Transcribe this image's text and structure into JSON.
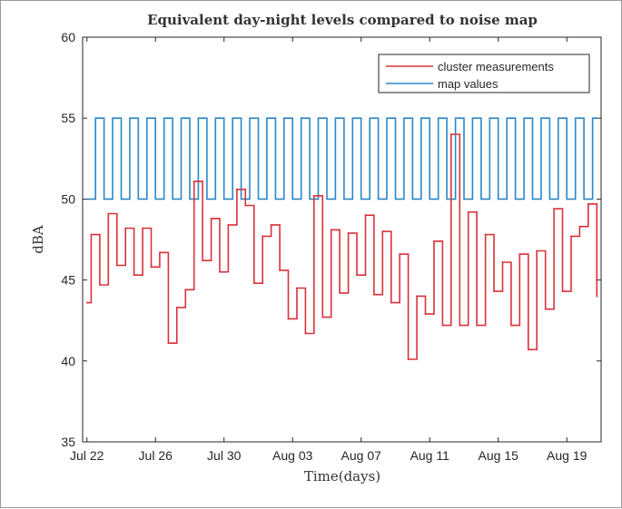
{
  "chart_data": {
    "type": "line",
    "style": "step",
    "title": "Equivalent day-night levels compared to noise map",
    "xlabel": "Time(days)",
    "ylabel": "dBA",
    "ylim": [
      35,
      60
    ],
    "yticks": [
      35,
      40,
      45,
      50,
      55,
      60
    ],
    "xlim": [
      "2023-07-21T18:00",
      "2023-08-21T00:00"
    ],
    "xticks": [
      {
        "date": "2023-07-22",
        "label": "Jul 22"
      },
      {
        "date": "2023-07-26",
        "label": "Jul 26"
      },
      {
        "date": "2023-07-30",
        "label": "Jul 30"
      },
      {
        "date": "2023-08-03",
        "label": "Aug 03"
      },
      {
        "date": "2023-08-07",
        "label": "Aug 07"
      },
      {
        "date": "2023-08-11",
        "label": "Aug 11"
      },
      {
        "date": "2023-08-15",
        "label": "Aug 15"
      },
      {
        "date": "2023-08-19",
        "label": "Aug 19"
      }
    ],
    "grid": false,
    "legend_position": "top-right",
    "series": [
      {
        "name": "cluster measurements",
        "color": "#d9323a",
        "points": [
          [
            "2023-07-22T00:00",
            43.6
          ],
          [
            "2023-07-22T06:00",
            47.8
          ],
          [
            "2023-07-22T18:00",
            44.7
          ],
          [
            "2023-07-23T06:00",
            49.1
          ],
          [
            "2023-07-23T18:00",
            45.9
          ],
          [
            "2023-07-24T06:00",
            48.2
          ],
          [
            "2023-07-24T18:00",
            45.3
          ],
          [
            "2023-07-25T06:00",
            48.2
          ],
          [
            "2023-07-25T18:00",
            45.8
          ],
          [
            "2023-07-26T06:00",
            46.7
          ],
          [
            "2023-07-26T18:00",
            41.1
          ],
          [
            "2023-07-27T06:00",
            43.3
          ],
          [
            "2023-07-27T18:00",
            44.4
          ],
          [
            "2023-07-28T06:00",
            51.1
          ],
          [
            "2023-07-28T18:00",
            46.2
          ],
          [
            "2023-07-29T06:00",
            48.8
          ],
          [
            "2023-07-29T18:00",
            45.5
          ],
          [
            "2023-07-30T06:00",
            48.4
          ],
          [
            "2023-07-30T18:00",
            50.6
          ],
          [
            "2023-07-31T06:00",
            49.6
          ],
          [
            "2023-07-31T18:00",
            44.8
          ],
          [
            "2023-08-01T06:00",
            47.7
          ],
          [
            "2023-08-01T18:00",
            48.4
          ],
          [
            "2023-08-02T06:00",
            45.6
          ],
          [
            "2023-08-02T18:00",
            42.6
          ],
          [
            "2023-08-03T06:00",
            44.5
          ],
          [
            "2023-08-03T18:00",
            41.7
          ],
          [
            "2023-08-04T06:00",
            50.2
          ],
          [
            "2023-08-04T18:00",
            42.7
          ],
          [
            "2023-08-05T06:00",
            48.1
          ],
          [
            "2023-08-05T18:00",
            44.2
          ],
          [
            "2023-08-06T06:00",
            47.9
          ],
          [
            "2023-08-06T18:00",
            45.3
          ],
          [
            "2023-08-07T06:00",
            49.0
          ],
          [
            "2023-08-07T18:00",
            44.1
          ],
          [
            "2023-08-08T06:00",
            48.0
          ],
          [
            "2023-08-08T18:00",
            43.6
          ],
          [
            "2023-08-09T06:00",
            46.6
          ],
          [
            "2023-08-09T18:00",
            40.1
          ],
          [
            "2023-08-10T06:00",
            44.0
          ],
          [
            "2023-08-10T18:00",
            42.9
          ],
          [
            "2023-08-11T06:00",
            47.4
          ],
          [
            "2023-08-11T18:00",
            42.2
          ],
          [
            "2023-08-12T06:00",
            54.0
          ],
          [
            "2023-08-12T18:00",
            42.2
          ],
          [
            "2023-08-13T06:00",
            49.2
          ],
          [
            "2023-08-13T18:00",
            42.2
          ],
          [
            "2023-08-14T06:00",
            47.8
          ],
          [
            "2023-08-14T18:00",
            44.3
          ],
          [
            "2023-08-15T06:00",
            46.1
          ],
          [
            "2023-08-15T18:00",
            42.2
          ],
          [
            "2023-08-16T06:00",
            46.6
          ],
          [
            "2023-08-16T18:00",
            40.7
          ],
          [
            "2023-08-17T06:00",
            46.8
          ],
          [
            "2023-08-17T18:00",
            43.2
          ],
          [
            "2023-08-18T06:00",
            49.4
          ],
          [
            "2023-08-18T18:00",
            44.3
          ],
          [
            "2023-08-19T06:00",
            47.7
          ],
          [
            "2023-08-19T18:00",
            48.3
          ],
          [
            "2023-08-20T06:00",
            49.7
          ],
          [
            "2023-08-20T18:00",
            44.0
          ]
        ]
      },
      {
        "name": "map values",
        "color": "#2a87c8",
        "day_value": 55,
        "night_value": 50,
        "start": "2023-07-22T00:00",
        "end": "2023-08-20T18:00"
      }
    ]
  }
}
